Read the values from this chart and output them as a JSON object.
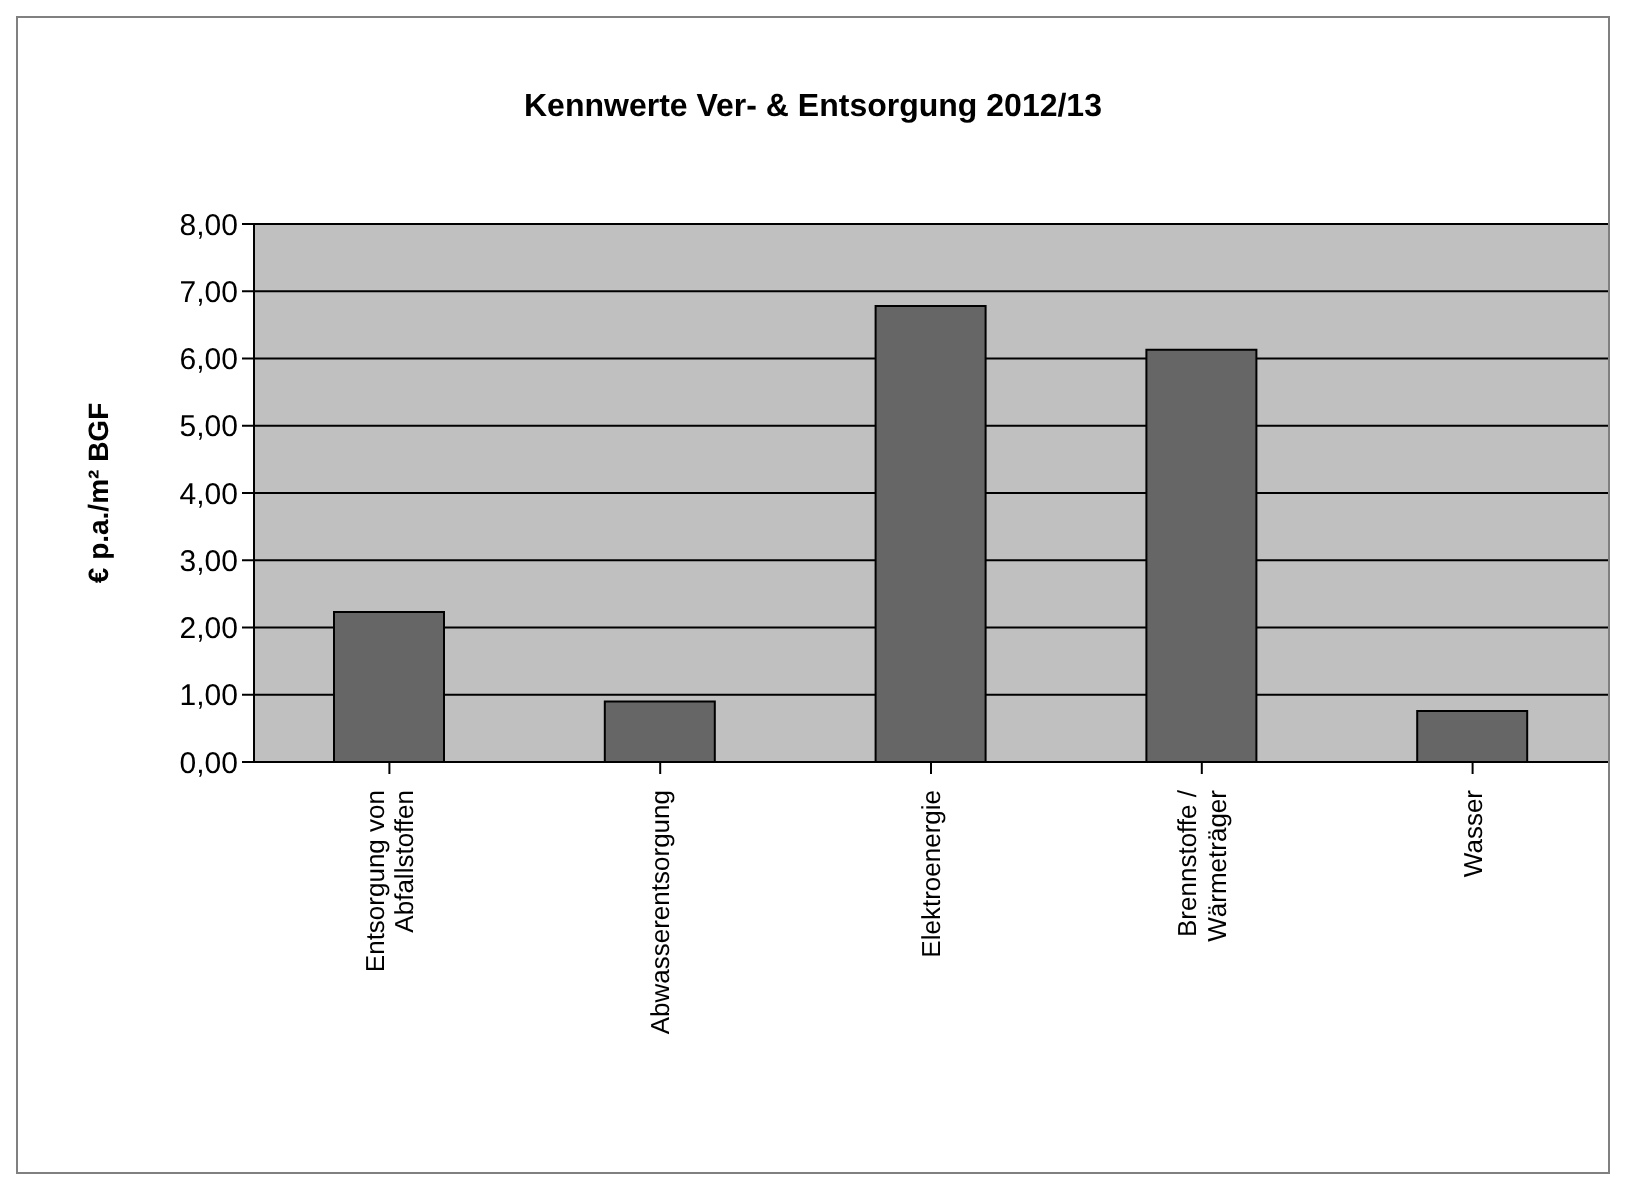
{
  "chart_data": {
    "type": "bar",
    "title": "Kennwerte Ver- & Entsorgung 2012/13",
    "ylabel": "€ p.a./m² BGF",
    "categories": [
      "Entsorgung von Abfallstoffen",
      "Abwasserentsorgung",
      "Elektroenergie",
      "Brennstoffe / Wärmeträger",
      "Wasser"
    ],
    "values": [
      2.23,
      0.9,
      6.78,
      6.13,
      0.76
    ],
    "color": "#666666",
    "ylim": [
      0,
      8
    ],
    "yticks": [
      {
        "value": 0,
        "label": "0,00"
      },
      {
        "value": 1,
        "label": "1,00"
      },
      {
        "value": 2,
        "label": "2,00"
      },
      {
        "value": 3,
        "label": "3,00"
      },
      {
        "value": 4,
        "label": "4,00"
      },
      {
        "value": 5,
        "label": "5,00"
      },
      {
        "value": 6,
        "label": "6,00"
      },
      {
        "value": 7,
        "label": "7,00"
      },
      {
        "value": 8,
        "label": "8,00"
      }
    ],
    "grid": "y",
    "legend": false
  }
}
